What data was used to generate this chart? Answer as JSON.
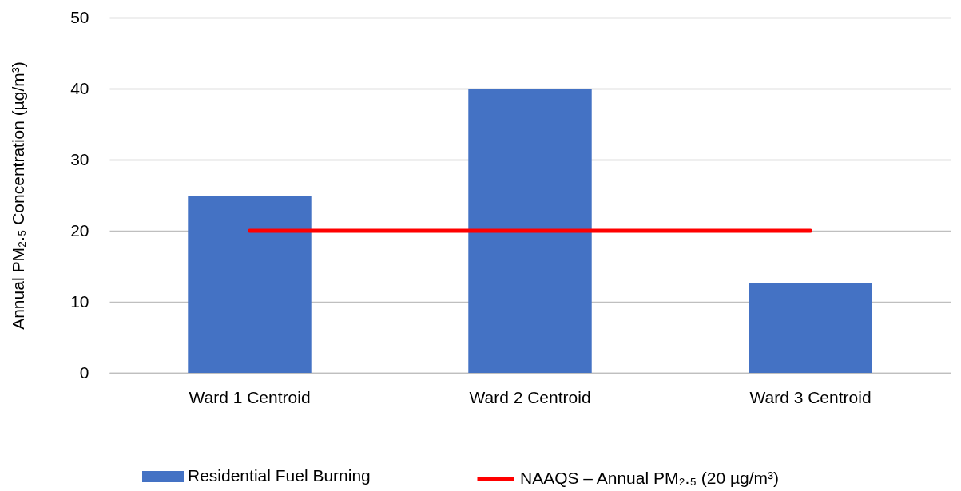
{
  "chart_data": {
    "type": "bar",
    "ylabel": "Annual PM₂.₅ Concentration (µg/m³)",
    "categories": [
      "Ward 1 Centroid",
      "Ward 2 Centroid",
      "Ward 3 Centroid"
    ],
    "series": [
      {
        "name": "Residential Fuel Burning",
        "color": "#4472c4",
        "values": [
          24.9,
          40,
          12.7
        ]
      },
      {
        "name": "NAAQS – Annual PM₂.₅ (20 µg/m³)",
        "type": "line",
        "color": "#ff0000",
        "values": [
          20,
          20,
          20
        ]
      }
    ],
    "ylim": [
      0,
      50
    ],
    "yticks": [
      0,
      10,
      20,
      30,
      40,
      50
    ],
    "grid": "y",
    "legend": "bottom"
  }
}
